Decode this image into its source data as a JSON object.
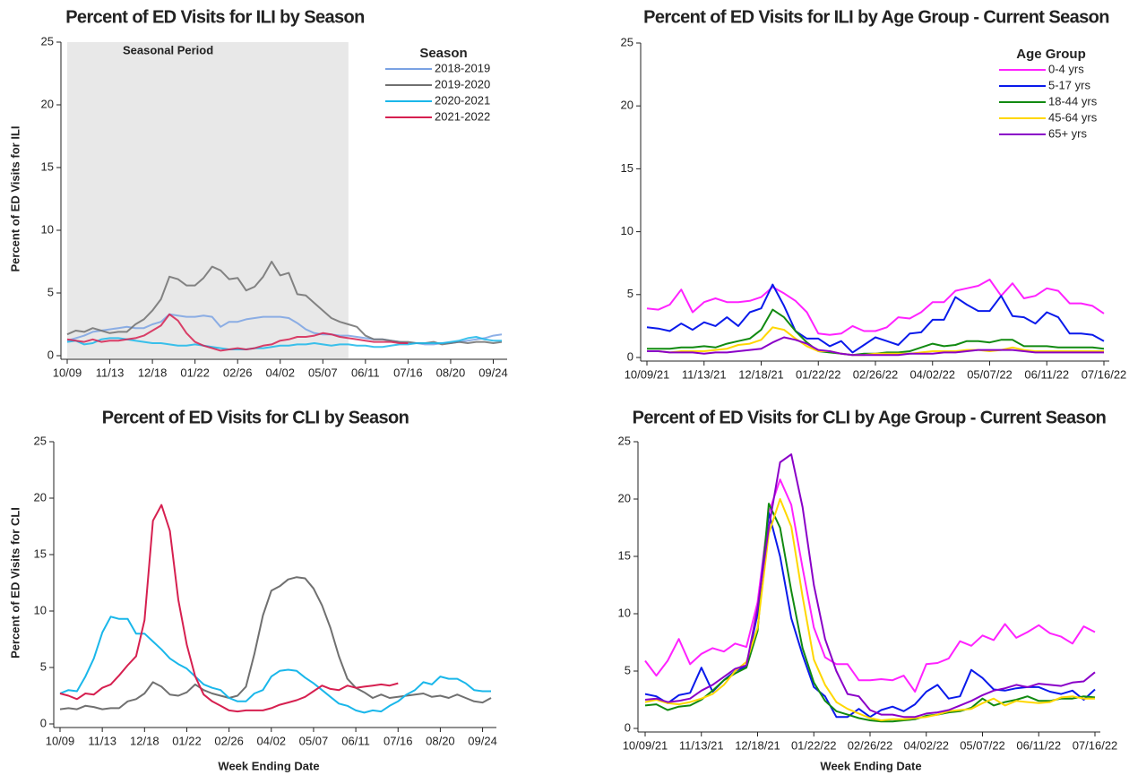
{
  "chart_data": [
    {
      "type": "line",
      "title": "Percent of ED Visits for ILI by Season",
      "y_label": "Percent of ED Visits for ILI",
      "categories": [
        "10/09",
        null,
        null,
        null,
        null,
        "11/13",
        null,
        null,
        null,
        null,
        "12/18",
        null,
        null,
        null,
        null,
        "01/22",
        null,
        null,
        null,
        null,
        "02/26",
        null,
        null,
        null,
        null,
        "04/02",
        null,
        null,
        null,
        null,
        "05/07",
        null,
        null,
        null,
        null,
        "06/11",
        null,
        null,
        null,
        null,
        "07/16",
        null,
        null,
        null,
        null,
        "08/20",
        null,
        null,
        null,
        null,
        "09/24",
        null
      ],
      "shade": {
        "label": "Seasonal Period",
        "x": [
          0,
          33
        ],
        "color": "#e8e8e8"
      },
      "legend": "upper right",
      "legend_title": "Season",
      "ylim": [
        0,
        25
      ],
      "yticks": [
        0,
        5,
        10,
        15,
        20,
        25
      ],
      "series": [
        {
          "name": "2018-2019",
          "color": "#7aa2e3",
          "values": [
            1.2,
            1.4,
            1.6,
            1.9,
            2.0,
            2.1,
            2.2,
            2.3,
            2.2,
            2.2,
            2.5,
            2.7,
            3.3,
            3.2,
            3.1,
            3.1,
            3.2,
            3.1,
            2.3,
            2.7,
            2.7,
            2.9,
            3.0,
            3.1,
            3.1,
            3.1,
            3.0,
            2.6,
            2.1,
            1.8,
            1.7,
            1.7,
            1.6,
            1.6,
            1.5,
            1.4,
            1.3,
            1.3,
            1.2,
            1.1,
            1.0,
            1.0,
            0.9,
            0.9,
            1.0,
            1.0,
            1.1,
            1.2,
            1.3,
            1.4,
            1.6,
            1.7
          ]
        },
        {
          "name": "2019-2020",
          "color": "#707070",
          "values": [
            1.7,
            2.0,
            1.9,
            2.2,
            2.0,
            1.8,
            1.9,
            1.9,
            2.5,
            2.9,
            3.6,
            4.5,
            6.3,
            6.1,
            5.6,
            5.6,
            6.2,
            7.1,
            6.8,
            6.1,
            6.2,
            5.2,
            5.5,
            6.3,
            7.5,
            6.4,
            6.6,
            4.9,
            4.8,
            4.2,
            3.6,
            3.0,
            2.7,
            2.5,
            2.3,
            1.6,
            1.3,
            1.3,
            1.2,
            1.1,
            1.1,
            1.0,
            1.0,
            1.1,
            0.9,
            1.0,
            1.1,
            1.0,
            1.1,
            1.1,
            1.0,
            1.1
          ]
        },
        {
          "name": "2020-2021",
          "color": "#1ab7ea",
          "values": [
            1.1,
            1.2,
            0.9,
            1.0,
            1.3,
            1.4,
            1.4,
            1.3,
            1.2,
            1.1,
            1.0,
            1.0,
            0.9,
            0.8,
            0.8,
            0.9,
            0.8,
            0.7,
            0.6,
            0.5,
            0.5,
            0.5,
            0.6,
            0.6,
            0.7,
            0.8,
            0.8,
            0.9,
            0.9,
            1.0,
            0.9,
            0.8,
            0.9,
            0.9,
            0.8,
            0.8,
            0.7,
            0.7,
            0.8,
            0.9,
            0.9,
            1.0,
            1.0,
            1.0,
            1.0,
            1.1,
            1.2,
            1.4,
            1.5,
            1.3,
            1.2,
            1.2
          ]
        },
        {
          "name": "2021-2022",
          "color": "#d62050",
          "values": [
            1.3,
            1.2,
            1.1,
            1.3,
            1.1,
            1.2,
            1.2,
            1.3,
            1.4,
            1.6,
            2.0,
            2.4,
            3.3,
            2.8,
            1.8,
            1.1,
            0.8,
            0.6,
            0.4,
            0.5,
            0.6,
            0.5,
            0.6,
            0.8,
            0.9,
            1.2,
            1.3,
            1.5,
            1.5,
            1.6,
            1.8,
            1.7,
            1.5,
            1.4,
            1.3,
            1.2,
            1.1,
            1.1,
            1.1,
            1.0,
            1.0,
            null,
            null,
            null,
            null,
            null,
            null,
            null,
            null,
            null,
            null,
            null
          ]
        }
      ]
    },
    {
      "type": "line",
      "title": "Percent of ED Visits for ILI by Age Group - Current Season",
      "categories": [
        "10/09/21",
        null,
        null,
        null,
        null,
        "11/13/21",
        null,
        null,
        null,
        null,
        "12/18/21",
        null,
        null,
        null,
        null,
        "01/22/22",
        null,
        null,
        null,
        null,
        "02/26/22",
        null,
        null,
        null,
        null,
        "04/02/22",
        null,
        null,
        null,
        null,
        "05/07/22",
        null,
        null,
        null,
        null,
        "06/11/22",
        null,
        null,
        null,
        null,
        "07/16/22"
      ],
      "legend": "upper right",
      "legend_title": "Age Group",
      "ylim": [
        0,
        25
      ],
      "yticks": [
        0,
        5,
        10,
        15,
        20,
        25
      ],
      "series": [
        {
          "name": "0-4 yrs",
          "color": "#ff22ff",
          "values": [
            3.9,
            3.8,
            4.2,
            5.4,
            3.6,
            4.4,
            4.7,
            4.4,
            4.4,
            4.5,
            4.8,
            5.6,
            5.1,
            4.5,
            3.6,
            1.9,
            1.8,
            1.9,
            2.5,
            2.1,
            2.1,
            2.4,
            3.2,
            3.1,
            3.6,
            4.4,
            4.4,
            5.3,
            5.5,
            5.7,
            6.2,
            4.9,
            5.9,
            4.7,
            4.9,
            5.5,
            5.3,
            4.3,
            4.3,
            4.1,
            3.5
          ]
        },
        {
          "name": "5-17 yrs",
          "color": "#0a1aeb",
          "values": [
            2.4,
            2.3,
            2.1,
            2.7,
            2.2,
            2.8,
            2.5,
            3.2,
            2.5,
            3.6,
            3.9,
            5.8,
            4.1,
            2.1,
            1.5,
            1.5,
            0.9,
            1.3,
            0.4,
            1.0,
            1.6,
            1.3,
            1.0,
            1.9,
            2.0,
            3.0,
            3.0,
            4.8,
            4.2,
            3.7,
            3.7,
            4.9,
            3.3,
            3.2,
            2.7,
            3.6,
            3.2,
            1.9,
            1.9,
            1.8,
            1.3
          ]
        },
        {
          "name": "18-44 yrs",
          "color": "#118a11",
          "values": [
            0.7,
            0.7,
            0.7,
            0.8,
            0.8,
            0.9,
            0.8,
            1.1,
            1.3,
            1.5,
            2.2,
            3.8,
            3.2,
            2.1,
            1.2,
            0.5,
            0.4,
            0.3,
            0.2,
            0.3,
            0.3,
            0.4,
            0.4,
            0.5,
            0.8,
            1.1,
            0.9,
            1.0,
            1.3,
            1.3,
            1.2,
            1.4,
            1.4,
            0.9,
            0.9,
            0.9,
            0.8,
            0.8,
            0.8,
            0.8,
            0.7
          ]
        },
        {
          "name": "45-64 yrs",
          "color": "#ffd700",
          "values": [
            0.5,
            0.5,
            0.4,
            0.5,
            0.5,
            0.5,
            0.6,
            0.7,
            1.0,
            1.1,
            1.4,
            2.4,
            2.2,
            1.5,
            0.9,
            0.5,
            0.5,
            0.3,
            0.2,
            0.2,
            0.3,
            0.3,
            0.3,
            0.3,
            0.4,
            0.5,
            0.5,
            0.5,
            0.6,
            0.6,
            0.5,
            0.6,
            0.8,
            0.6,
            0.5,
            0.5,
            0.5,
            0.5,
            0.5,
            0.5,
            0.5
          ]
        },
        {
          "name": "65+ yrs",
          "color": "#8a00c8",
          "values": [
            0.5,
            0.5,
            0.4,
            0.4,
            0.4,
            0.3,
            0.4,
            0.4,
            0.5,
            0.6,
            0.7,
            1.2,
            1.6,
            1.4,
            1.1,
            0.6,
            0.5,
            0.3,
            0.2,
            0.2,
            0.2,
            0.2,
            0.2,
            0.3,
            0.3,
            0.3,
            0.4,
            0.4,
            0.5,
            0.6,
            0.6,
            0.6,
            0.6,
            0.5,
            0.4,
            0.4,
            0.4,
            0.4,
            0.4,
            0.4,
            0.4
          ]
        }
      ]
    },
    {
      "type": "line",
      "title": "Percent of ED Visits for CLI by Season",
      "y_label": "Percent of ED Visits for CLI",
      "x_label": "Week Ending Date",
      "categories": [
        "10/09",
        null,
        null,
        null,
        null,
        "11/13",
        null,
        null,
        null,
        null,
        "12/18",
        null,
        null,
        null,
        null,
        "01/22",
        null,
        null,
        null,
        null,
        "02/26",
        null,
        null,
        null,
        null,
        "04/02",
        null,
        null,
        null,
        null,
        "05/07",
        null,
        null,
        null,
        null,
        "06/11",
        null,
        null,
        null,
        null,
        "07/16",
        null,
        null,
        null,
        null,
        "08/20",
        null,
        null,
        null,
        null,
        "09/24",
        null
      ],
      "ylim": [
        0,
        25
      ],
      "yticks": [
        0,
        5,
        10,
        15,
        20,
        25
      ],
      "series": [
        {
          "color": "#707070",
          "values": [
            1.3,
            1.4,
            1.3,
            1.6,
            1.5,
            1.3,
            1.4,
            1.4,
            2.0,
            2.2,
            2.7,
            3.7,
            3.3,
            2.6,
            2.5,
            2.8,
            3.5,
            3.0,
            2.7,
            2.5,
            2.3,
            2.5,
            3.3,
            6.2,
            9.6,
            11.8,
            12.2,
            12.8,
            13.0,
            12.9,
            12.0,
            10.5,
            8.5,
            6.0,
            4.0,
            3.2,
            2.8,
            2.3,
            2.6,
            2.3,
            2.4,
            2.5,
            2.6,
            2.7,
            2.4,
            2.5,
            2.3,
            2.6,
            2.3,
            2.0,
            1.9,
            2.3
          ]
        },
        {
          "color": "#1ab7ea",
          "values": [
            2.7,
            3.0,
            2.9,
            4.2,
            5.8,
            8.1,
            9.5,
            9.3,
            9.3,
            8.0,
            8.0,
            7.3,
            6.6,
            5.8,
            5.3,
            4.9,
            4.2,
            3.5,
            3.2,
            3.0,
            2.3,
            2.0,
            2.0,
            2.7,
            3.0,
            4.2,
            4.7,
            4.8,
            4.7,
            4.1,
            3.6,
            3.0,
            2.4,
            1.8,
            1.6,
            1.2,
            1.0,
            1.2,
            1.1,
            1.6,
            2.0,
            2.6,
            3.0,
            3.7,
            3.5,
            4.2,
            4.0,
            4.0,
            3.6,
            3.0,
            2.9,
            2.9
          ]
        },
        {
          "color": "#d62050",
          "values": [
            2.7,
            2.5,
            2.2,
            2.7,
            2.6,
            3.2,
            3.5,
            4.3,
            5.2,
            6.0,
            9.2,
            18.0,
            19.4,
            17.1,
            11.0,
            7.0,
            4.2,
            2.6,
            2.0,
            1.6,
            1.2,
            1.1,
            1.2,
            1.2,
            1.2,
            1.4,
            1.7,
            1.9,
            2.1,
            2.4,
            2.9,
            3.4,
            3.1,
            3.0,
            3.4,
            3.2,
            3.3,
            3.4,
            3.5,
            3.4,
            3.6,
            null,
            null,
            null,
            null,
            null,
            null,
            null,
            null,
            null,
            null,
            null
          ]
        }
      ]
    },
    {
      "type": "line",
      "title": "Percent of ED Visits for CLI by Age Group - Current Season",
      "x_label": "Week Ending Date",
      "categories": [
        "10/09/21",
        null,
        null,
        null,
        null,
        "11/13/21",
        null,
        null,
        null,
        null,
        "12/18/21",
        null,
        null,
        null,
        null,
        "01/22/22",
        null,
        null,
        null,
        null,
        "02/26/22",
        null,
        null,
        null,
        null,
        "04/02/22",
        null,
        null,
        null,
        null,
        "05/07/22",
        null,
        null,
        null,
        null,
        "06/11/22",
        null,
        null,
        null,
        null,
        "07/16/22"
      ],
      "ylim": [
        0,
        25
      ],
      "yticks": [
        0,
        5,
        10,
        15,
        20,
        25
      ],
      "series": [
        {
          "color": "#ff22ff",
          "values": [
            5.9,
            4.6,
            5.9,
            7.8,
            5.6,
            6.5,
            7.0,
            6.7,
            7.4,
            7.1,
            11.0,
            18.8,
            21.7,
            19.5,
            14.0,
            8.8,
            6.2,
            5.6,
            5.6,
            4.2,
            4.2,
            4.3,
            4.2,
            4.6,
            3.2,
            5.6,
            5.7,
            6.1,
            7.6,
            7.2,
            8.1,
            7.7,
            9.1,
            7.9,
            8.4,
            9.0,
            8.3,
            8.0,
            7.4,
            8.9,
            8.4
          ]
        },
        {
          "color": "#0a1aeb",
          "values": [
            3.0,
            2.8,
            2.2,
            2.9,
            3.1,
            5.3,
            3.2,
            4.2,
            5.0,
            5.4,
            10.0,
            18.8,
            15.0,
            9.6,
            6.4,
            3.6,
            2.8,
            1.0,
            1.0,
            1.7,
            1.0,
            1.6,
            1.9,
            1.5,
            2.1,
            3.2,
            3.8,
            2.6,
            2.8,
            5.1,
            4.4,
            3.4,
            3.3,
            3.5,
            3.6,
            3.6,
            3.2,
            3.0,
            3.3,
            2.5,
            3.4
          ]
        },
        {
          "color": "#118a11",
          "values": [
            2.0,
            2.1,
            1.6,
            1.9,
            2.0,
            2.5,
            3.3,
            4.2,
            4.8,
            5.3,
            8.5,
            19.6,
            17.5,
            12.0,
            7.0,
            4.0,
            2.4,
            1.5,
            1.2,
            0.9,
            0.7,
            0.6,
            0.6,
            0.7,
            0.8,
            1.1,
            1.2,
            1.4,
            1.5,
            1.8,
            2.6,
            2.0,
            2.3,
            2.5,
            2.8,
            2.4,
            2.4,
            2.6,
            2.6,
            2.8,
            2.7
          ]
        },
        {
          "color": "#ffd700",
          "values": [
            2.3,
            2.5,
            2.2,
            2.1,
            2.3,
            2.6,
            3.0,
            3.8,
            5.0,
            5.8,
            8.8,
            17.0,
            20.0,
            17.6,
            11.5,
            6.0,
            3.8,
            2.3,
            1.7,
            1.3,
            0.9,
            0.7,
            0.8,
            0.8,
            0.9,
            1.0,
            1.2,
            1.5,
            1.6,
            1.7,
            2.2,
            2.6,
            2.0,
            2.4,
            2.3,
            2.2,
            2.3,
            2.7,
            2.8,
            2.6,
            2.6
          ]
        },
        {
          "color": "#8a00c8",
          "values": [
            2.5,
            2.6,
            2.3,
            2.4,
            2.6,
            3.3,
            3.8,
            4.5,
            5.2,
            5.5,
            10.5,
            17.5,
            23.2,
            23.9,
            19.3,
            12.5,
            7.8,
            5.0,
            3.0,
            2.8,
            1.6,
            1.2,
            1.2,
            1.0,
            1.0,
            1.3,
            1.4,
            1.6,
            2.0,
            2.4,
            2.9,
            3.3,
            3.5,
            3.8,
            3.6,
            3.9,
            3.8,
            3.7,
            4.0,
            4.1,
            4.9
          ]
        }
      ]
    }
  ]
}
